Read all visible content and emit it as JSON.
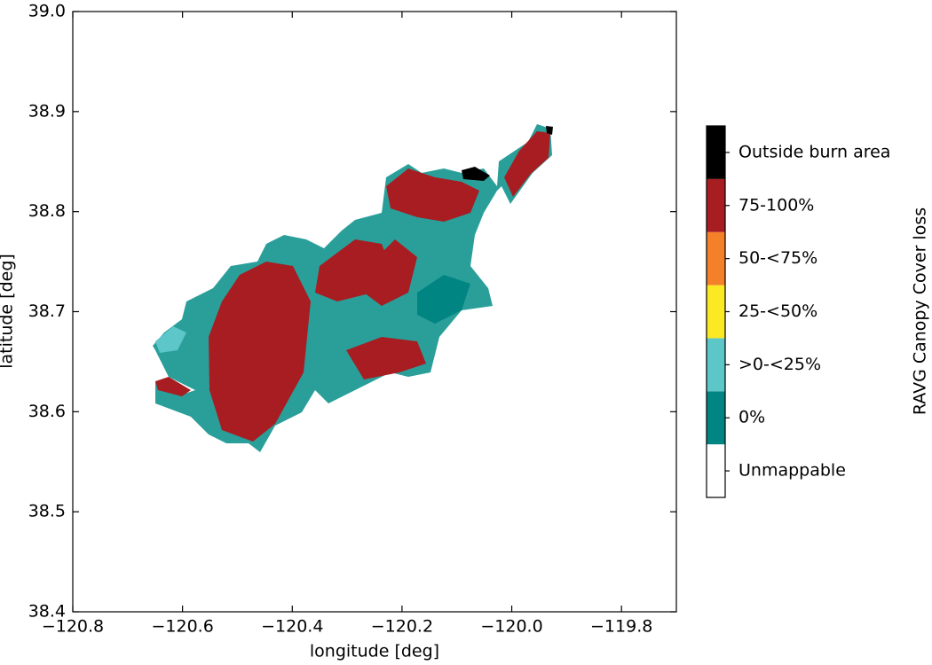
{
  "map": {
    "xlabel": "longitude [deg]",
    "ylabel": "latitude [deg]",
    "xlim": [
      -120.8,
      -119.7
    ],
    "ylim": [
      38.4,
      39.0
    ],
    "xticks": [
      {
        "value": -120.8,
        "label": "−120.8"
      },
      {
        "value": -120.6,
        "label": "−120.6"
      },
      {
        "value": -120.4,
        "label": "−120.4"
      },
      {
        "value": -120.2,
        "label": "−120.2"
      },
      {
        "value": -120.0,
        "label": "−120.0"
      },
      {
        "value": -119.8,
        "label": "−119.8"
      }
    ],
    "yticks": [
      38.4,
      38.5,
      38.6,
      38.7,
      38.8,
      38.9,
      {
        "value": 39,
        "label": "39.0"
      }
    ],
    "colorbar": {
      "title": "RAVG Canopy Cover loss",
      "classes": [
        {
          "label": "Unmappable",
          "color": "#ffffff"
        },
        {
          "label": "0%",
          "color": "#008582"
        },
        {
          "label": ">0-<25%",
          "color": "#5cc6c8"
        },
        {
          "label": "25-<50%",
          "color": "#fbe924"
        },
        {
          "label": "50-<75%",
          "color": "#f4802a"
        },
        {
          "label": "75-100%",
          "color": "#a71d21"
        },
        {
          "label": "Outside burn area",
          "color": "#000000"
        }
      ]
    }
  }
}
